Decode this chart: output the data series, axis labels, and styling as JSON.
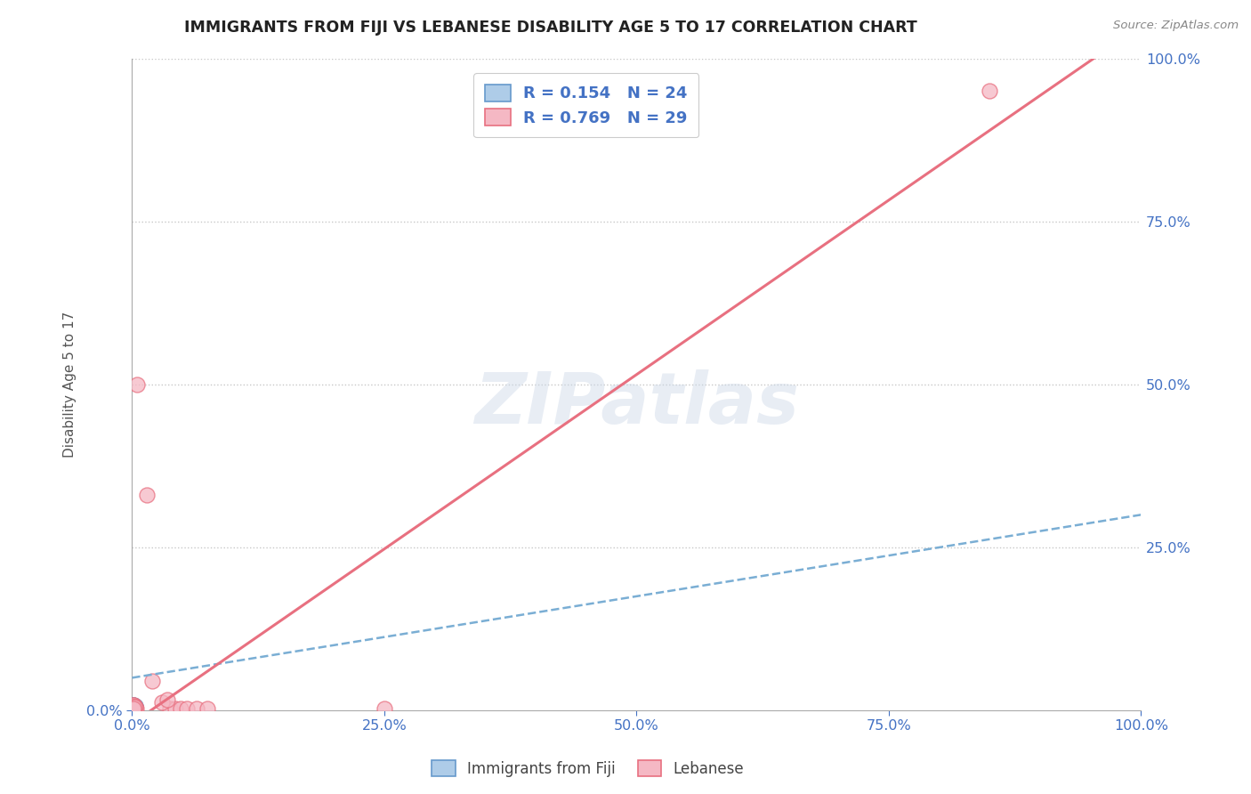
{
  "title": "IMMIGRANTS FROM FIJI VS LEBANESE DISABILITY AGE 5 TO 17 CORRELATION CHART",
  "source_text": "Source: ZipAtlas.com",
  "ylabel": "Disability Age 5 to 17",
  "xlim": [
    0,
    1.0
  ],
  "ylim": [
    0,
    1.0
  ],
  "xtick_labels": [
    "0.0%",
    "25.0%",
    "50.0%",
    "75.0%",
    "100.0%"
  ],
  "xtick_positions": [
    0.0,
    0.25,
    0.5,
    0.75,
    1.0
  ],
  "left_ytick_labels": [
    "0.0%"
  ],
  "left_ytick_positions": [
    0.0
  ],
  "right_ytick_labels": [
    "100.0%",
    "75.0%",
    "50.0%",
    "25.0%"
  ],
  "right_ytick_positions": [
    1.0,
    0.75,
    0.5,
    0.25
  ],
  "fiji_color": "#aecce8",
  "lebanese_color": "#f5b8c4",
  "fiji_edge_color": "#6699cc",
  "lebanese_edge_color": "#e87080",
  "fiji_line_color": "#7aaed4",
  "lebanese_line_color": "#e87080",
  "fiji_scatter": [
    [
      0.001,
      0.004
    ],
    [
      0.001,
      0.006
    ],
    [
      0.002,
      0.003
    ],
    [
      0.001,
      0.008
    ],
    [
      0.001,
      0.007
    ],
    [
      0.002,
      0.004
    ],
    [
      0.001,
      0.003
    ],
    [
      0.003,
      0.005
    ],
    [
      0.001,
      0.003
    ],
    [
      0.002,
      0.006
    ],
    [
      0.001,
      0.008
    ],
    [
      0.002,
      0.005
    ],
    [
      0.003,
      0.007
    ],
    [
      0.001,
      0.004
    ],
    [
      0.002,
      0.003
    ],
    [
      0.001,
      0.005
    ],
    [
      0.002,
      0.002
    ],
    [
      0.001,
      0.006
    ],
    [
      0.003,
      0.004
    ],
    [
      0.001,
      0.007
    ],
    [
      0.002,
      0.005
    ],
    [
      0.001,
      0.003
    ],
    [
      0.002,
      0.004
    ],
    [
      0.003,
      0.006
    ]
  ],
  "lebanese_scatter": [
    [
      0.001,
      0.003
    ],
    [
      0.002,
      0.002
    ],
    [
      0.002,
      0.005
    ],
    [
      0.002,
      0.007
    ],
    [
      0.001,
      0.008
    ],
    [
      0.003,
      0.003
    ],
    [
      0.002,
      0.006
    ],
    [
      0.003,
      0.004
    ],
    [
      0.001,
      0.008
    ],
    [
      0.002,
      0.002
    ],
    [
      0.002,
      0.004
    ],
    [
      0.001,
      0.005
    ],
    [
      0.004,
      0.003
    ],
    [
      0.003,
      0.006
    ],
    [
      0.002,
      0.005
    ],
    [
      0.001,
      0.003
    ],
    [
      0.038,
      0.003
    ],
    [
      0.043,
      0.003
    ],
    [
      0.048,
      0.003
    ],
    [
      0.054,
      0.003
    ],
    [
      0.064,
      0.003
    ],
    [
      0.075,
      0.003
    ],
    [
      0.02,
      0.045
    ],
    [
      0.015,
      0.33
    ],
    [
      0.005,
      0.5
    ],
    [
      0.03,
      0.013
    ],
    [
      0.035,
      0.016
    ],
    [
      0.25,
      0.003
    ],
    [
      0.85,
      0.95
    ]
  ],
  "fiji_line_y_intercept": 0.05,
  "fiji_line_slope": 0.25,
  "lebanese_line_y_intercept": -0.02,
  "lebanese_line_slope": 1.07,
  "watermark_text": "ZIPatlas",
  "background_color": "#ffffff",
  "grid_color": "#c8c8c8",
  "title_color": "#222222",
  "axis_tick_color": "#4472c4",
  "legend_text_color": "#4472c4",
  "legend_fiji_label": "R = 0.154   N = 24",
  "legend_lebanese_label": "R = 0.769   N = 29",
  "bottom_legend_fiji": "Immigrants from Fiji",
  "bottom_legend_lebanese": "Lebanese"
}
